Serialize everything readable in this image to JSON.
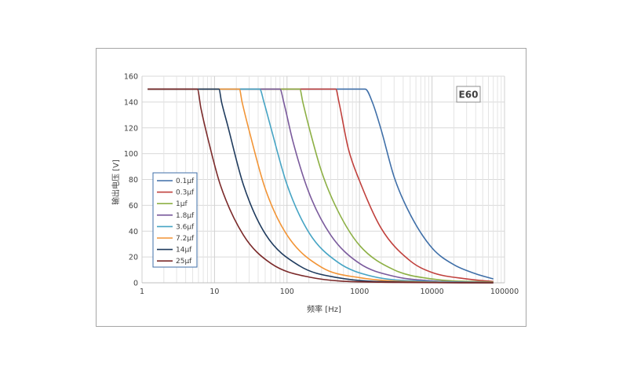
{
  "chart_data": {
    "type": "line",
    "xlabel": "频率 [Hz]",
    "ylabel": "输出电压 [V]",
    "x_scale": "log",
    "xlim": [
      1,
      100000
    ],
    "ylim": [
      0,
      160
    ],
    "x_ticks": [
      "1",
      "10",
      "100",
      "1000",
      "10000",
      "100000"
    ],
    "y_ticks": [
      "0",
      "20",
      "40",
      "60",
      "80",
      "100",
      "120",
      "140",
      "160"
    ],
    "grid": true,
    "badge": "E60",
    "legend_position": "left-middle",
    "series": [
      {
        "name": "0.1μf",
        "color": "#3f6fa8",
        "x": [
          1.2,
          1000,
          1200,
          1500,
          2000,
          3000,
          5000,
          10000,
          20000,
          40000,
          70000
        ],
        "y": [
          150,
          150,
          150,
          140,
          118,
          82,
          53,
          27,
          14,
          7,
          3
        ]
      },
      {
        "name": "0.3μf",
        "color": "#c0403c",
        "x": [
          1.2,
          400,
          470,
          520,
          700,
          1000,
          2000,
          5000,
          10000,
          30000,
          70000
        ],
        "y": [
          150,
          150,
          150,
          140,
          104,
          79,
          42,
          17,
          8,
          3,
          1
        ]
      },
      {
        "name": "1μf",
        "color": "#8db045",
        "x": [
          1.2,
          130,
          150,
          165,
          200,
          300,
          500,
          1000,
          3000,
          10000,
          70000
        ],
        "y": [
          150,
          150,
          150,
          140,
          121,
          86,
          56,
          29,
          10,
          3,
          0.5
        ]
      },
      {
        "name": "1.8μf",
        "color": "#7a5a9c",
        "x": [
          1.2,
          65,
          80,
          90,
          120,
          200,
          400,
          1000,
          3000,
          10000,
          70000
        ],
        "y": [
          150,
          150,
          150,
          140,
          110,
          70,
          37,
          15,
          5,
          1.5,
          0.2
        ]
      },
      {
        "name": "3.6μf",
        "color": "#46a4c4",
        "x": [
          1.2,
          35,
          42,
          48,
          60,
          100,
          200,
          500,
          1500,
          10000,
          70000
        ],
        "y": [
          150,
          150,
          150,
          140,
          120,
          76,
          39,
          16,
          5,
          1,
          0
        ]
      },
      {
        "name": "7.2μf",
        "color": "#f29435",
        "x": [
          1.2,
          18,
          22,
          24,
          30,
          50,
          100,
          300,
          1000,
          10000,
          70000
        ],
        "y": [
          150,
          150,
          150,
          140,
          118,
          73,
          37,
          12,
          4,
          0.5,
          0
        ]
      },
      {
        "name": "14μf",
        "color": "#1f3b5e",
        "x": [
          1.2,
          10,
          11.5,
          12.5,
          15,
          25,
          50,
          150,
          500,
          5000,
          70000
        ],
        "y": [
          150,
          150,
          150,
          140,
          123,
          76,
          38,
          13,
          4,
          0.5,
          0
        ]
      },
      {
        "name": "25μf",
        "color": "#7b2a2a",
        "x": [
          1.2,
          5,
          5.8,
          6.5,
          8,
          12,
          25,
          60,
          200,
          2000,
          70000
        ],
        "y": [
          150,
          150,
          150,
          135,
          113,
          76,
          37,
          15,
          4.5,
          0.5,
          0
        ]
      }
    ]
  }
}
